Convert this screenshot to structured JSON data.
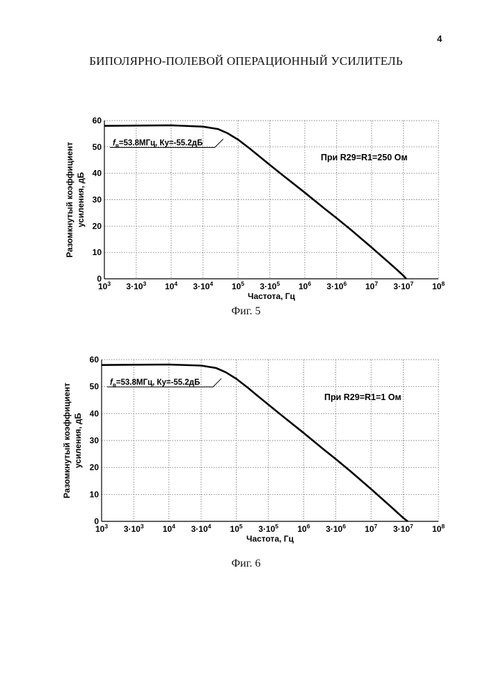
{
  "page_number": "4",
  "document_title": "БИПОЛЯРНО-ПОЛЕВОЙ ОПЕРАЦИОННЫЙ УСИЛИТЕЛЬ",
  "chart_data": [
    {
      "type": "line",
      "caption": "Фиг. 5",
      "xlabel": "Частота, Гц",
      "ylabel": [
        "Разомкнутый коэффициент",
        "усиления, дБ"
      ],
      "x_scale": "log",
      "xlim": [
        1000,
        100000000
      ],
      "ylim": [
        0,
        60
      ],
      "grid": true,
      "x_ticks": [
        {
          "value": 1000,
          "base": "10",
          "exp": "3"
        },
        {
          "value": 3000,
          "base": "3·10",
          "exp": "3"
        },
        {
          "value": 10000,
          "base": "10",
          "exp": "4"
        },
        {
          "value": 30000,
          "base": "3·10",
          "exp": "4"
        },
        {
          "value": 100000,
          "base": "10",
          "exp": "5"
        },
        {
          "value": 300000,
          "base": "3·10",
          "exp": "5"
        },
        {
          "value": 1000000,
          "base": "10",
          "exp": "6"
        },
        {
          "value": 3000000,
          "base": "3·10",
          "exp": "6"
        },
        {
          "value": 10000000,
          "base": "10",
          "exp": "7"
        },
        {
          "value": 30000000,
          "base": "3·10",
          "exp": "7"
        },
        {
          "value": 100000000,
          "base": "10",
          "exp": "8"
        }
      ],
      "y_ticks": [
        0,
        10,
        20,
        30,
        40,
        50,
        60
      ],
      "annotation": {
        "f_symbol": "f",
        "f_subscript": "в",
        "text": "=53.8МГц, Ку=-55.2дБ",
        "x": 60000,
        "y": 53
      },
      "condition_label": "При R29=R1=250 Ом",
      "series": [
        {
          "x": [
            1000,
            3000,
            10000,
            30000,
            50000,
            70000,
            100000,
            150000,
            200000,
            300000,
            500000,
            1000000,
            2000000,
            3000000,
            5000000,
            10000000,
            20000000,
            30000000,
            33000000
          ],
          "y": [
            58.0,
            58.1,
            58.2,
            57.7,
            56.8,
            55.2,
            52.8,
            49.4,
            46.8,
            43.2,
            38.7,
            32.7,
            26.5,
            23.0,
            18.4,
            11.9,
            5.2,
            1.2,
            0
          ]
        }
      ]
    },
    {
      "type": "line",
      "caption": "Фиг. 6",
      "xlabel": "Частота, Гц",
      "ylabel": [
        "Разомкнутый коэффициент",
        "усиления, дБ"
      ],
      "x_scale": "log",
      "xlim": [
        1000,
        100000000
      ],
      "ylim": [
        0,
        60
      ],
      "grid": true,
      "x_ticks": [
        {
          "value": 1000,
          "base": "10",
          "exp": "3"
        },
        {
          "value": 3000,
          "base": "3·10",
          "exp": "3"
        },
        {
          "value": 10000,
          "base": "10",
          "exp": "4"
        },
        {
          "value": 30000,
          "base": "3·10",
          "exp": "4"
        },
        {
          "value": 100000,
          "base": "10",
          "exp": "5"
        },
        {
          "value": 300000,
          "base": "3·10",
          "exp": "5"
        },
        {
          "value": 1000000,
          "base": "10",
          "exp": "6"
        },
        {
          "value": 3000000,
          "base": "3·10",
          "exp": "6"
        },
        {
          "value": 10000000,
          "base": "10",
          "exp": "7"
        },
        {
          "value": 30000000,
          "base": "3·10",
          "exp": "7"
        },
        {
          "value": 100000000,
          "base": "10",
          "exp": "8"
        }
      ],
      "y_ticks": [
        0,
        10,
        20,
        30,
        40,
        50,
        60
      ],
      "annotation": {
        "f_symbol": "f",
        "f_subscript": "в",
        "text": "=53.8МГц, Ку=-55.2дБ",
        "x": 60000,
        "y": 53
      },
      "condition_label": "При R29=R1=1 Ом",
      "series": [
        {
          "x": [
            1000,
            3000,
            10000,
            30000,
            50000,
            70000,
            100000,
            150000,
            200000,
            300000,
            500000,
            1000000,
            2000000,
            3000000,
            5000000,
            10000000,
            20000000,
            30000000,
            35000000
          ],
          "y": [
            58.0,
            58.1,
            58.2,
            57.8,
            56.9,
            55.3,
            52.9,
            49.5,
            46.9,
            43.3,
            38.8,
            32.8,
            26.6,
            23.1,
            18.5,
            12.0,
            5.3,
            1.3,
            0
          ]
        }
      ]
    }
  ]
}
